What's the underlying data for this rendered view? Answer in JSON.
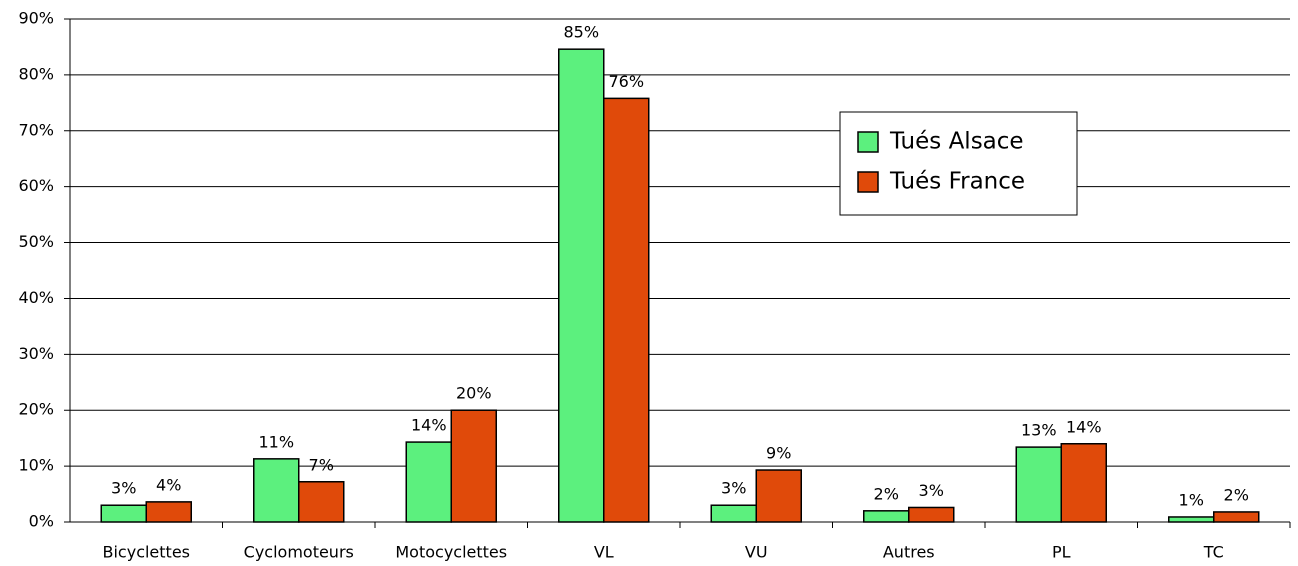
{
  "chart_data": {
    "type": "bar",
    "categories": [
      "Bicyclettes",
      "Cyclomoteurs",
      "Motocyclettes",
      "VL",
      "VU",
      "Autres",
      "PL",
      "TC"
    ],
    "series": [
      {
        "name": "Tués Alsace",
        "color": "#5cf07e",
        "values": [
          3.0,
          11.3,
          14.3,
          84.6,
          3.0,
          2.0,
          13.4,
          0.9
        ],
        "value_labels": [
          "3%",
          "11%",
          "14%",
          "85%",
          "3%",
          "2%",
          "13%",
          "1%"
        ]
      },
      {
        "name": "Tués France",
        "color": "#e04a0a",
        "values": [
          3.6,
          7.2,
          20.0,
          75.8,
          9.3,
          2.6,
          14.0,
          1.8
        ],
        "value_labels": [
          "4%",
          "7%",
          "20%",
          "76%",
          "9%",
          "3%",
          "14%",
          "2%"
        ]
      }
    ],
    "ylim": [
      0,
      90
    ],
    "yticks": [
      {
        "value": 0,
        "label": "0%"
      },
      {
        "value": 10,
        "label": "10%"
      },
      {
        "value": 20,
        "label": "20%"
      },
      {
        "value": 30,
        "label": "30%"
      },
      {
        "value": 40,
        "label": "40%"
      },
      {
        "value": 50,
        "label": "50%"
      },
      {
        "value": 60,
        "label": "60%"
      },
      {
        "value": 70,
        "label": "70%"
      },
      {
        "value": 80,
        "label": "80%"
      },
      {
        "value": 90,
        "label": "90%"
      }
    ],
    "grid": true
  }
}
